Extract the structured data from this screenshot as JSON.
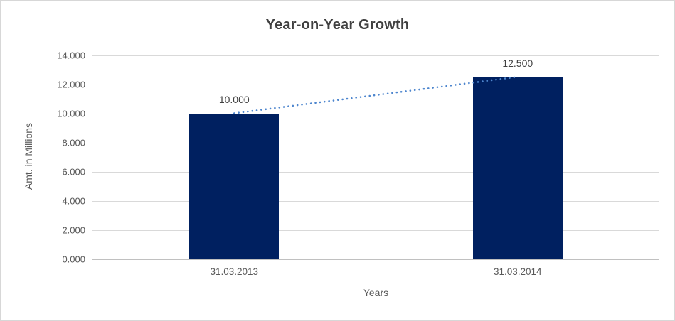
{
  "window": {
    "background_color": "#FFFFFF",
    "border_color": "#D7D7D7"
  },
  "chart_data": {
    "type": "bar",
    "title": "Year-on-Year Growth",
    "categories": [
      "31.03.2013",
      "31.03.2014"
    ],
    "values": [
      10000,
      12500
    ],
    "data_labels": [
      "10.000",
      "12.500"
    ],
    "xlabel": "Years",
    "ylabel": "Amt. in Millions",
    "ylim": [
      0,
      14000
    ],
    "ytick_step": 2000,
    "ytick_labels": [
      "0.000",
      "2.000",
      "4.000",
      "6.000",
      "8.000",
      "10.000",
      "12.000",
      "14.000"
    ],
    "grid": true,
    "legend": "none",
    "bar_color": "#002060",
    "gridline_color": "#D9D9D9",
    "axis_line_color": "#C0C0C0",
    "title_color": "#404040",
    "tick_label_color": "#595959",
    "trendline": {
      "type": "linear",
      "style": "dotted",
      "color": "#4E86CE",
      "from_value": 10000,
      "to_value": 12500
    }
  }
}
